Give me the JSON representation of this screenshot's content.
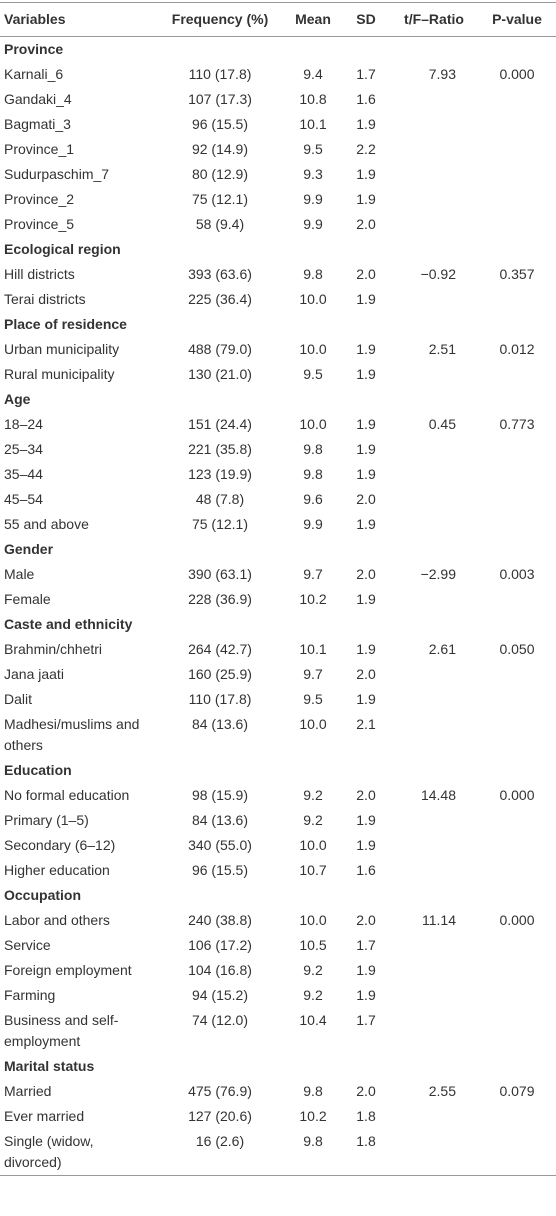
{
  "table": {
    "header": [
      "Variables",
      "Frequency (%)",
      "Mean",
      "SD",
      "t/F–Ratio",
      "P-value"
    ],
    "sections": [
      {
        "title": "Province",
        "ratio": "7.93",
        "p": "0.000",
        "rows": [
          [
            "Karnali_6",
            "110 (17.8)",
            "9.4",
            "1.7"
          ],
          [
            "Gandaki_4",
            "107 (17.3)",
            "10.8",
            "1.6"
          ],
          [
            "Bagmati_3",
            "96 (15.5)",
            "10.1",
            "1.9"
          ],
          [
            "Province_1",
            "92 (14.9)",
            "9.5",
            "2.2"
          ],
          [
            "Sudurpaschim_7",
            "80 (12.9)",
            "9.3",
            "1.9"
          ],
          [
            "Province_2",
            "75 (12.1)",
            "9.9",
            "1.9"
          ],
          [
            "Province_5",
            "58 (9.4)",
            "9.9",
            "2.0"
          ]
        ]
      },
      {
        "title": "Ecological region",
        "ratio": "−0.92",
        "p": "0.357",
        "rows": [
          [
            "Hill districts",
            "393 (63.6)",
            "9.8",
            "2.0"
          ],
          [
            "Terai districts",
            "225 (36.4)",
            "10.0",
            "1.9"
          ]
        ]
      },
      {
        "title": "Place of residence",
        "ratio": "2.51",
        "p": "0.012",
        "rows": [
          [
            "Urban municipality",
            "488 (79.0)",
            "10.0",
            "1.9"
          ],
          [
            "Rural municipality",
            "130 (21.0)",
            "9.5",
            "1.9"
          ]
        ]
      },
      {
        "title": "Age",
        "ratio": "0.45",
        "p": "0.773",
        "rows": [
          [
            "18–24",
            "151 (24.4)",
            "10.0",
            "1.9"
          ],
          [
            "25–34",
            "221 (35.8)",
            "9.8",
            "1.9"
          ],
          [
            "35–44",
            "123 (19.9)",
            "9.8",
            "1.9"
          ],
          [
            "45–54",
            "48 (7.8)",
            "9.6",
            "2.0"
          ],
          [
            "55 and above",
            "75 (12.1)",
            "9.9",
            "1.9"
          ]
        ]
      },
      {
        "title": "Gender",
        "ratio": "−2.99",
        "p": "0.003",
        "rows": [
          [
            "Male",
            "390 (63.1)",
            "9.7",
            "2.0"
          ],
          [
            "Female",
            "228 (36.9)",
            "10.2",
            "1.9"
          ]
        ]
      },
      {
        "title": "Caste and ethnicity",
        "ratio": "2.61",
        "p": "0.050",
        "rows": [
          [
            "Brahmin/chhetri",
            "264 (42.7)",
            "10.1",
            "1.9"
          ],
          [
            "Jana jaati",
            "160 (25.9)",
            "9.7",
            "2.0"
          ],
          [
            "Dalit",
            "110 (17.8)",
            "9.5",
            "1.9"
          ],
          [
            "Madhesi/muslims and others",
            "84 (13.6)",
            "10.0",
            "2.1"
          ]
        ]
      },
      {
        "title": "Education",
        "ratio": "14.48",
        "p": "0.000",
        "rows": [
          [
            "No formal education",
            "98 (15.9)",
            "9.2",
            "2.0"
          ],
          [
            "Primary (1–5)",
            "84 (13.6)",
            "9.2",
            "1.9"
          ],
          [
            "Secondary (6–12)",
            "340 (55.0)",
            "10.0",
            "1.9"
          ],
          [
            "Higher education",
            "96 (15.5)",
            "10.7",
            "1.6"
          ]
        ]
      },
      {
        "title": "Occupation",
        "ratio": "11.14",
        "p": "0.000",
        "rows": [
          [
            "Labor and others",
            "240 (38.8)",
            "10.0",
            "2.0"
          ],
          [
            "Service",
            "106 (17.2)",
            "10.5",
            "1.7"
          ],
          [
            "Foreign employment",
            "104 (16.8)",
            "9.2",
            "1.9"
          ],
          [
            "Farming",
            "94 (15.2)",
            "9.2",
            "1.9"
          ],
          [
            "Business and self-employment",
            "74 (12.0)",
            "10.4",
            "1.7"
          ]
        ]
      },
      {
        "title": "Marital status",
        "ratio": "2.55",
        "p": "0.079",
        "rows": [
          [
            "Married",
            "475 (76.9)",
            "9.8",
            "2.0"
          ],
          [
            "Ever married",
            "127 (20.6)",
            "10.2",
            "1.8"
          ],
          [
            "Single (widow, divorced)",
            "16 (2.6)",
            "9.8",
            "1.8"
          ]
        ]
      }
    ]
  }
}
